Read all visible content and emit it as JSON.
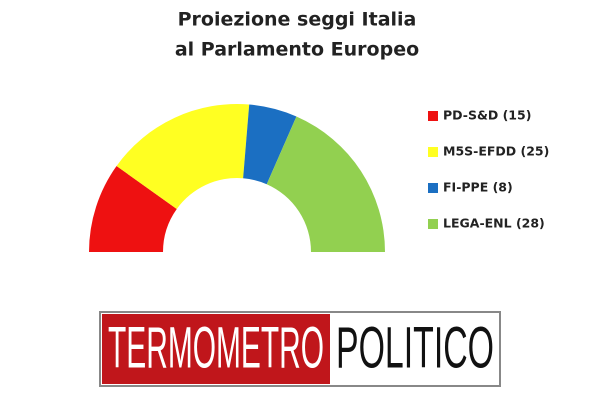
{
  "chart_data": {
    "type": "donut",
    "half": true,
    "title": [
      "Proiezione seggi Italia",
      "al Parlamento Europeo"
    ],
    "categories": [
      "PD-S&D (15)",
      "M5S-EFDD (25)",
      "FI-PPE (8)",
      "LEGA-ENL (28)"
    ],
    "values": [
      15,
      25,
      8,
      28
    ],
    "colors": [
      "#ee1111",
      "#ffff22",
      "#1b6fc2",
      "#92d050"
    ],
    "legend": "right"
  },
  "logo": {
    "left": "TERMOMETRO",
    "right": "POLITICO"
  }
}
